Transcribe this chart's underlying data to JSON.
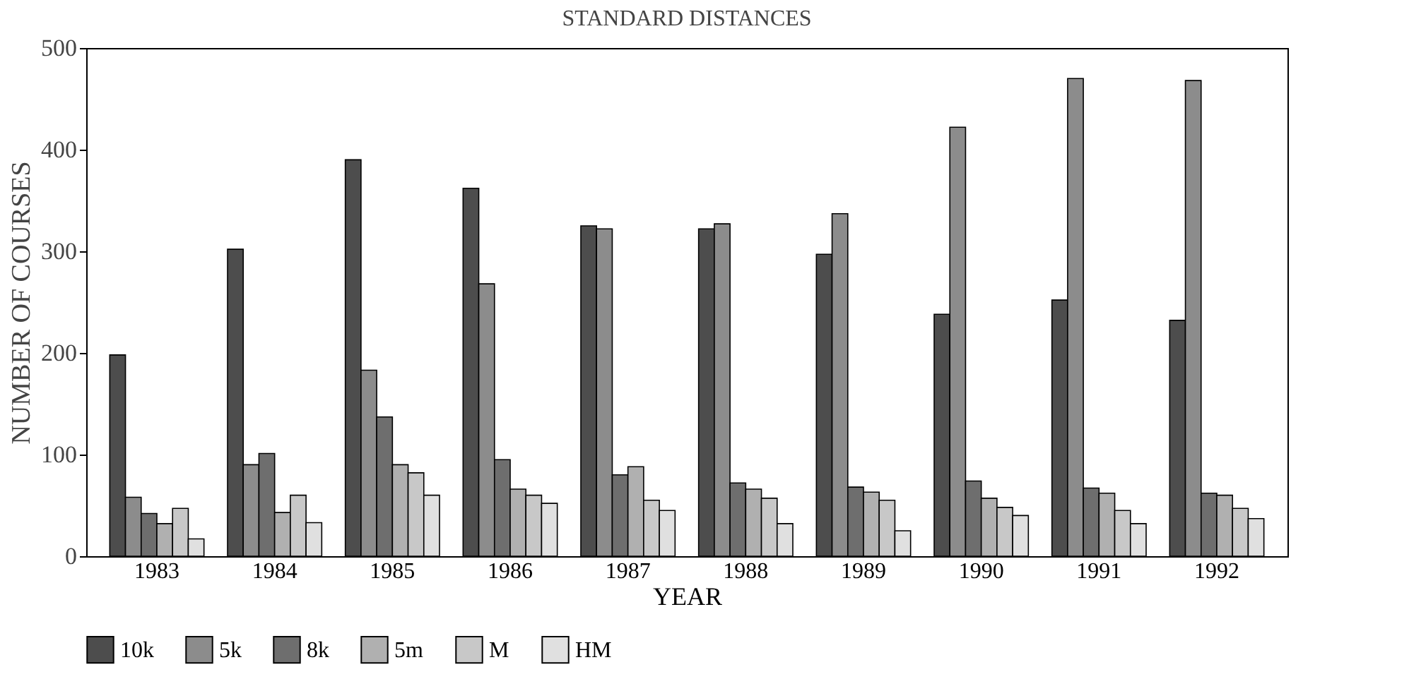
{
  "chart_data": {
    "type": "bar",
    "title": "STANDARD DISTANCES",
    "xlabel": "YEAR",
    "ylabel": "NUMBER OF COURSES",
    "categories": [
      "1983",
      "1984",
      "1985",
      "1986",
      "1987",
      "1988",
      "1989",
      "1990",
      "1991",
      "1992"
    ],
    "series": [
      {
        "name": "10k",
        "color": "#4d4d4d",
        "values": [
          198,
          302,
          390,
          362,
          325,
          322,
          297,
          238,
          252,
          232
        ]
      },
      {
        "name": "5k",
        "color": "#8c8c8c",
        "values": [
          58,
          90,
          183,
          268,
          322,
          327,
          337,
          422,
          470,
          468
        ]
      },
      {
        "name": "8k",
        "color": "#6e6e6e",
        "values": [
          42,
          101,
          137,
          95,
          80,
          72,
          68,
          74,
          67,
          62
        ]
      },
      {
        "name": "5m",
        "color": "#b0b0b0",
        "values": [
          32,
          43,
          90,
          66,
          88,
          66,
          63,
          57,
          62,
          60
        ]
      },
      {
        "name": "M",
        "color": "#c8c8c8",
        "values": [
          47,
          60,
          82,
          60,
          55,
          57,
          55,
          48,
          45,
          47
        ]
      },
      {
        "name": "HM",
        "color": "#e0e0e0",
        "values": [
          17,
          33,
          60,
          52,
          45,
          32,
          25,
          40,
          32,
          37
        ]
      }
    ],
    "ylim": [
      0,
      500
    ],
    "yticks": [
      0,
      100,
      200,
      300,
      400,
      500
    ],
    "grid": false,
    "legend": "bottom"
  }
}
